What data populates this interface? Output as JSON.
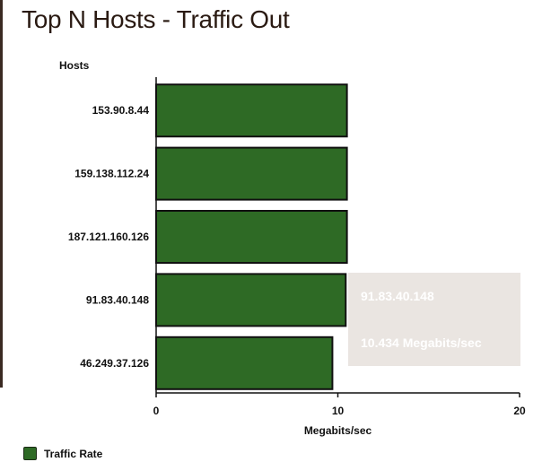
{
  "chart_title": "Top N Hosts - Traffic Out",
  "chart_data": {
    "type": "bar",
    "orientation": "horizontal",
    "title": "Top N Hosts - Traffic Out",
    "ylabel": "Hosts",
    "xlabel": "Megabits/sec",
    "categories": [
      "153.90.8.44",
      "159.138.112.24",
      "187.121.160.126",
      "91.83.40.148",
      "46.249.37.126"
    ],
    "series": [
      {
        "name": "Traffic Rate",
        "values": [
          10.5,
          10.5,
          10.5,
          10.434,
          9.7
        ]
      }
    ],
    "xlim": [
      0,
      20
    ],
    "xticks": [
      "0",
      "10",
      "20"
    ],
    "grid": false,
    "legend": "bottom-left",
    "bar_color": "#2e6a25"
  },
  "tooltip": {
    "host": "91.83.40.148",
    "value_text": "10.434 Megabits/sec"
  }
}
